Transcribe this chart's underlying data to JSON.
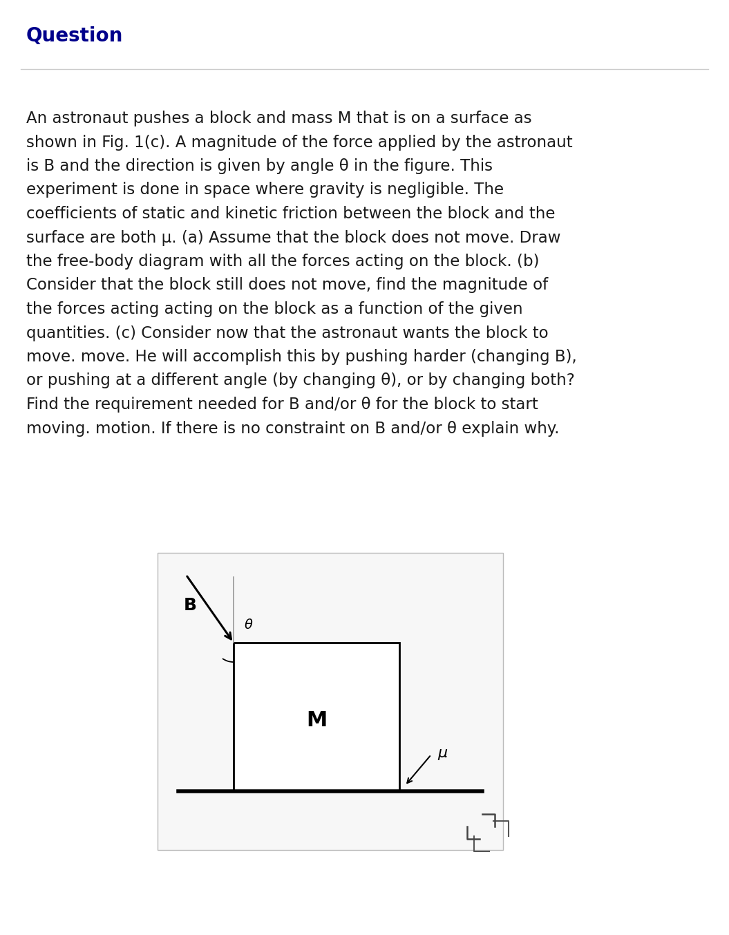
{
  "title": "Question",
  "title_color": "#00008B",
  "title_fontsize": 20,
  "body_text_lines": [
    "An astronaut pushes a block and mass M that is on a surface as",
    "shown in Fig. 1(c). A magnitude of the force applied by the astronaut",
    "is B and the direction is given by angle θ in the figure. This",
    "experiment is done in space where gravity is negligible. The",
    "coefficients of static and kinetic friction between the block and the",
    "surface are both μ. (a) Assume that the block does not move. Draw",
    "the free-body diagram with all the forces acting on the block. (b)",
    "Consider that the block still does not move, find the magnitude of",
    "the forces acting acting on the block as a function of the given",
    "quantities. (c) Consider now that the astronaut wants the block to",
    "move. move. He will accomplish this by pushing harder (changing B),",
    "or pushing at a different angle (by changing θ), or by changing both?",
    "Find the requirement needed for B and/or θ for the block to start",
    "moving. motion. If there is no constraint on B and/or θ explain why."
  ],
  "body_fontsize": 16.5,
  "bg_color": "#ffffff",
  "separator_color": "#cccccc",
  "block_label": "M",
  "force_label": "B",
  "angle_label": "θ",
  "friction_label": "μ"
}
